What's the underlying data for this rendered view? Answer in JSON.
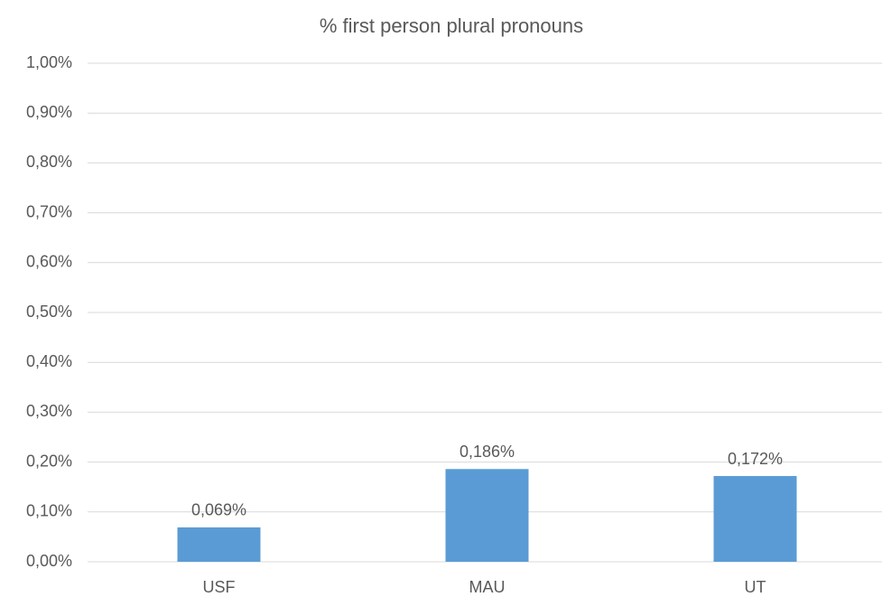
{
  "chart_data": {
    "type": "bar",
    "title": "% first person plural pronouns",
    "categories": [
      "USF",
      "MAU",
      "UT"
    ],
    "values": [
      0.069,
      0.186,
      0.172
    ],
    "value_labels": [
      "0,069%",
      "0,186%",
      "0,172%"
    ],
    "color": "#5b9bd5",
    "ylim": [
      0,
      1
    ],
    "yticks": [
      {
        "value": 0,
        "label": "0,00%"
      },
      {
        "value": 0.1,
        "label": "0,10%"
      },
      {
        "value": 0.2,
        "label": "0,20%"
      },
      {
        "value": 0.3,
        "label": "0,30%"
      },
      {
        "value": 0.4,
        "label": "0,40%"
      },
      {
        "value": 0.5,
        "label": "0,50%"
      },
      {
        "value": 0.6,
        "label": "0,60%"
      },
      {
        "value": 0.7,
        "label": "0,70%"
      },
      {
        "value": 0.8,
        "label": "0,80%"
      },
      {
        "value": 0.9,
        "label": "0,90%"
      },
      {
        "value": 1,
        "label": "1,00%"
      }
    ],
    "grid": true
  }
}
